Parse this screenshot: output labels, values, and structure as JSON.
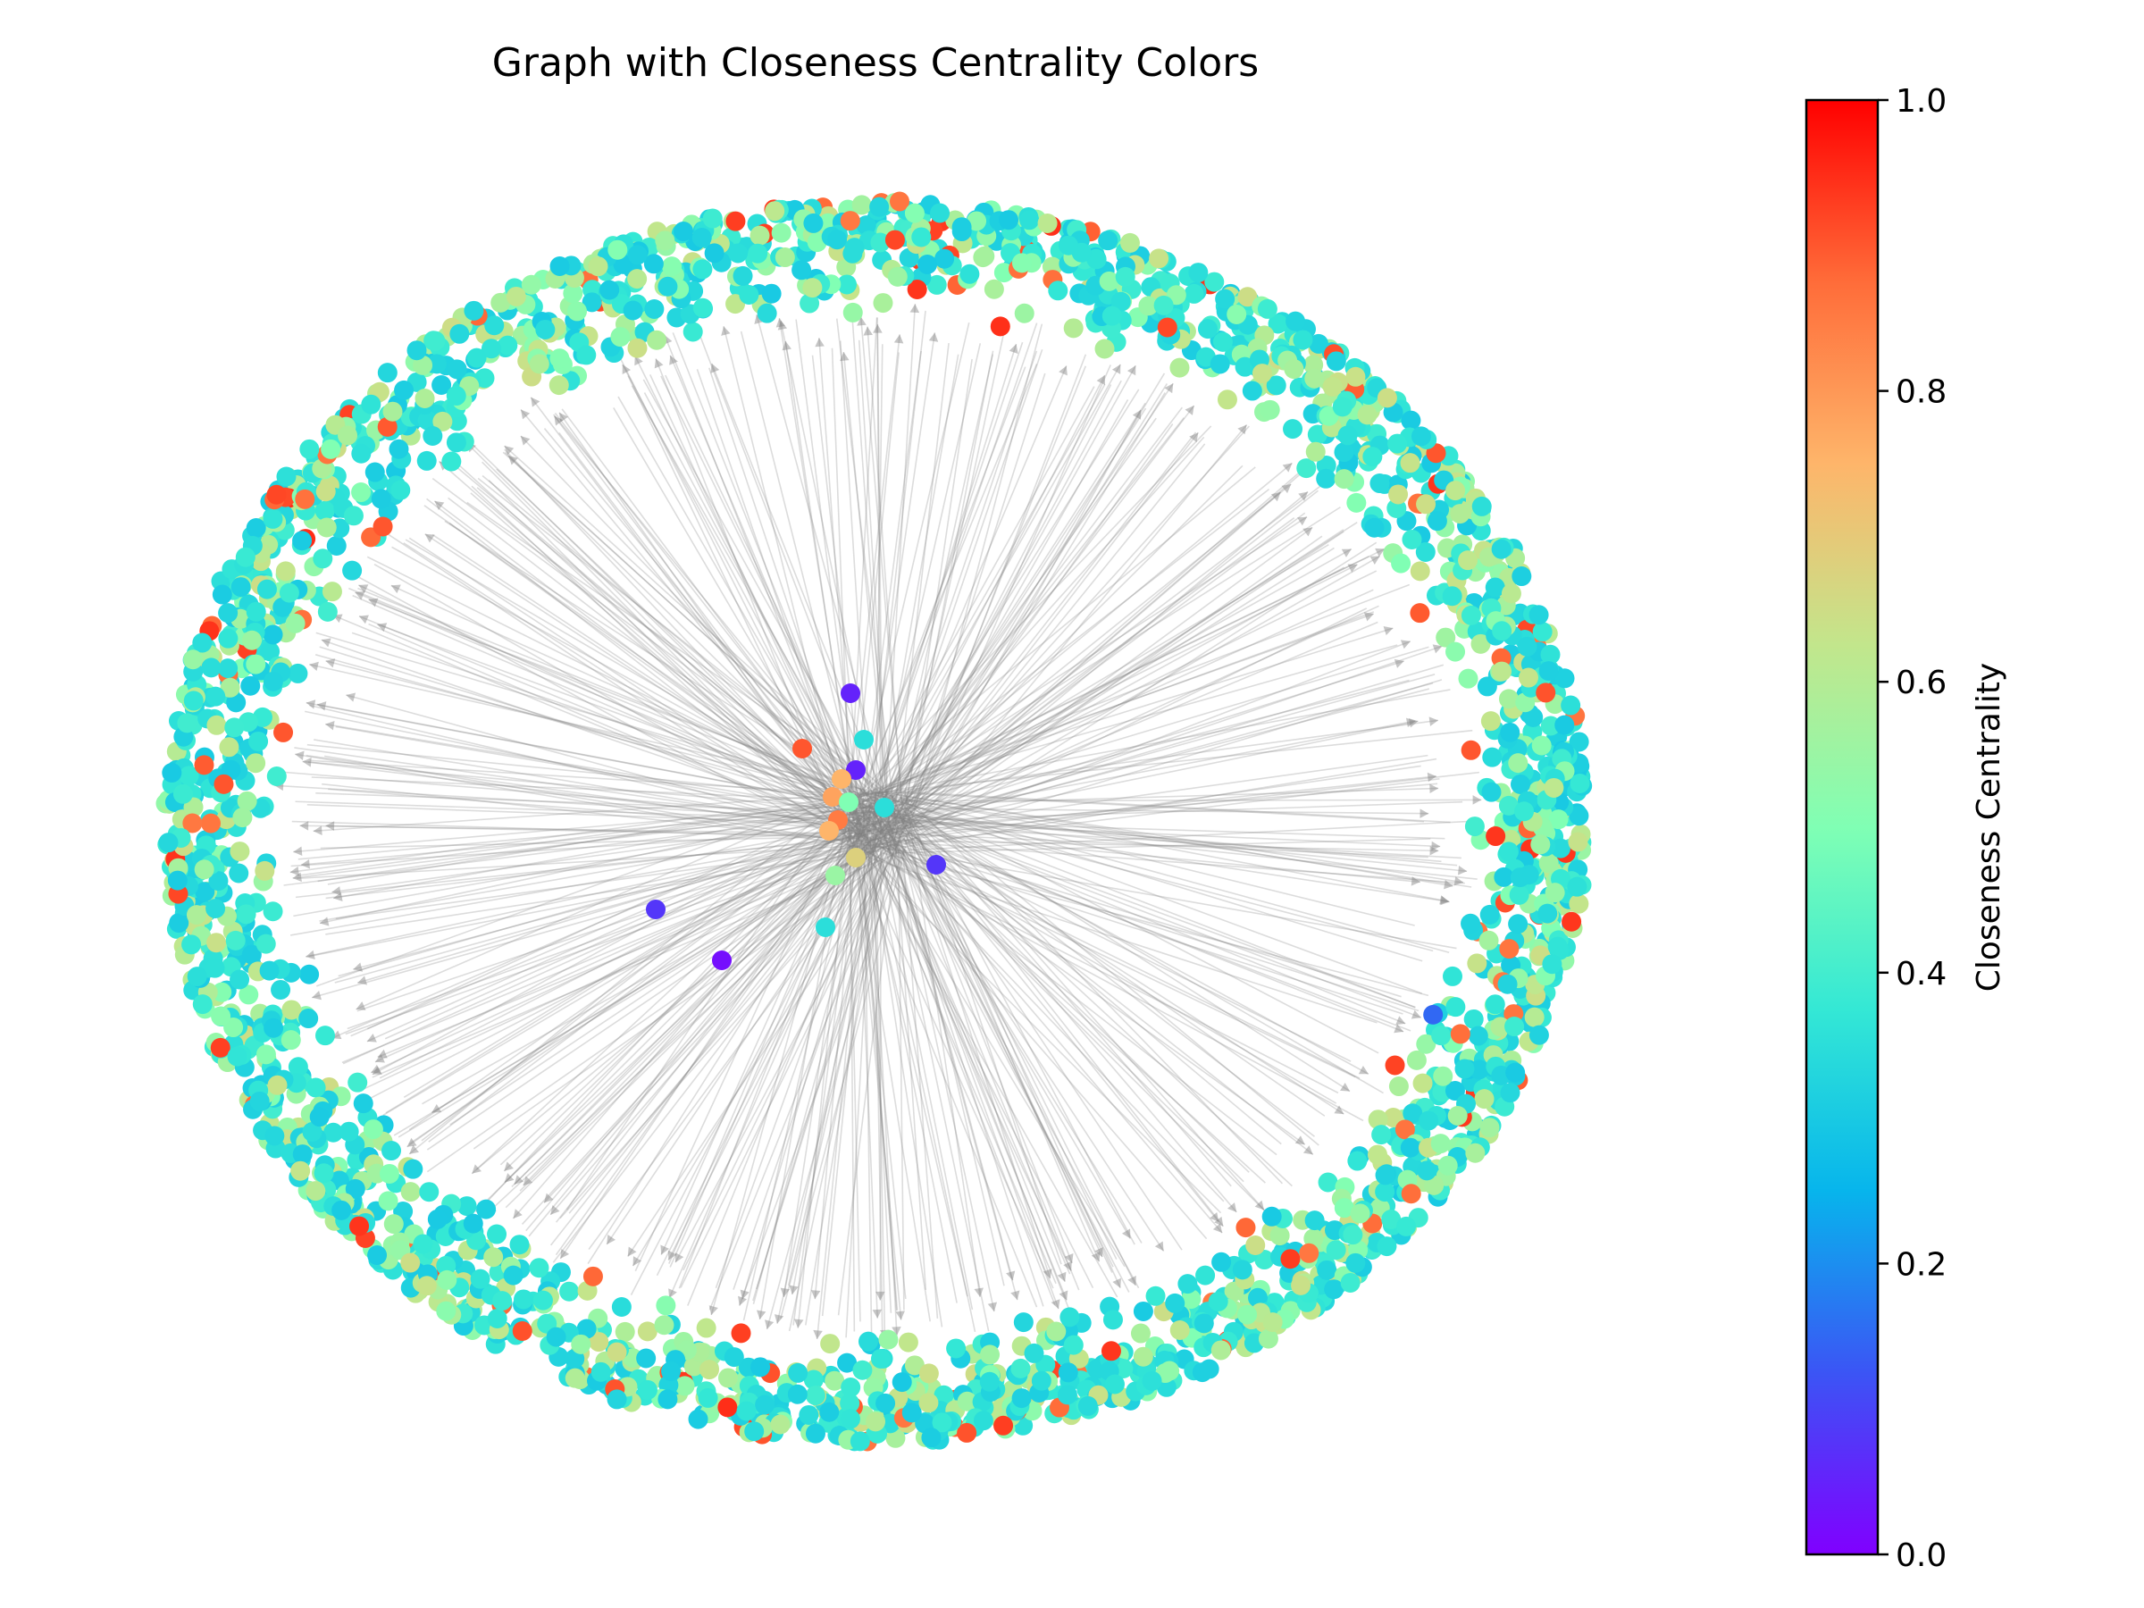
{
  "chart_data": {
    "type": "scatter",
    "subtype": "network-graph",
    "title": "Graph with Closeness Centrality Colors",
    "xlabel": "",
    "ylabel": "",
    "axes_visible": false,
    "grid": false,
    "colormap": "rainbow",
    "color_stops": [
      "#8000ff",
      "#3b55f5",
      "#07b5ec",
      "#34e8d5",
      "#80ffb4",
      "#c2e68c",
      "#feb56a",
      "#ff6c39",
      "#ff0000"
    ],
    "edge_color": "#808080",
    "colorbar": {
      "label": "Closeness Centrality",
      "range": [
        0.0,
        1.0
      ],
      "ticks": [
        "0.0",
        "0.2",
        "0.4",
        "0.6",
        "0.8",
        "1.0"
      ]
    },
    "layout": "spring layout: dense ring of outer nodes around a small central cluster, directed edges from center toward ring",
    "approx_outer_node_color_distribution": {
      "0.3-0.4": 0.6,
      "0.5-0.65": 0.35,
      "0.85-0.95": 0.05
    },
    "central_nodes": [
      {
        "x": 0.018,
        "y": 0.072,
        "value": 0.9
      },
      {
        "x": 0.072,
        "y": 0.134,
        "value": 0.05
      },
      {
        "x": 0.087,
        "y": 0.082,
        "value": 0.35
      },
      {
        "x": 0.078,
        "y": 0.048,
        "value": 0.05
      },
      {
        "x": 0.11,
        "y": 0.006,
        "value": 0.35
      },
      {
        "x": 0.062,
        "y": 0.038,
        "value": 0.75
      },
      {
        "x": 0.052,
        "y": 0.018,
        "value": 0.78
      },
      {
        "x": 0.058,
        "y": -0.008,
        "value": 0.85
      },
      {
        "x": 0.048,
        "y": -0.02,
        "value": 0.75
      },
      {
        "x": 0.07,
        "y": 0.012,
        "value": 0.5
      },
      {
        "x": 0.078,
        "y": -0.05,
        "value": 0.68
      },
      {
        "x": 0.055,
        "y": -0.07,
        "value": 0.55
      },
      {
        "x": 0.044,
        "y": -0.128,
        "value": 0.35
      },
      {
        "x": 0.168,
        "y": -0.058,
        "value": 0.08
      },
      {
        "x": -0.146,
        "y": -0.108,
        "value": 0.08
      },
      {
        "x": -0.072,
        "y": -0.165,
        "value": 0.02
      }
    ],
    "notable_ring_nodes": [
      {
        "angle_deg": -22,
        "value": 0.15
      },
      {
        "angle_deg": 8,
        "value": 0.9
      },
      {
        "angle_deg": -52,
        "value": 0.88
      },
      {
        "angle_deg": -118,
        "value": 0.88
      },
      {
        "angle_deg": 145,
        "value": 0.9
      },
      {
        "angle_deg": 170,
        "value": 0.9
      }
    ]
  }
}
